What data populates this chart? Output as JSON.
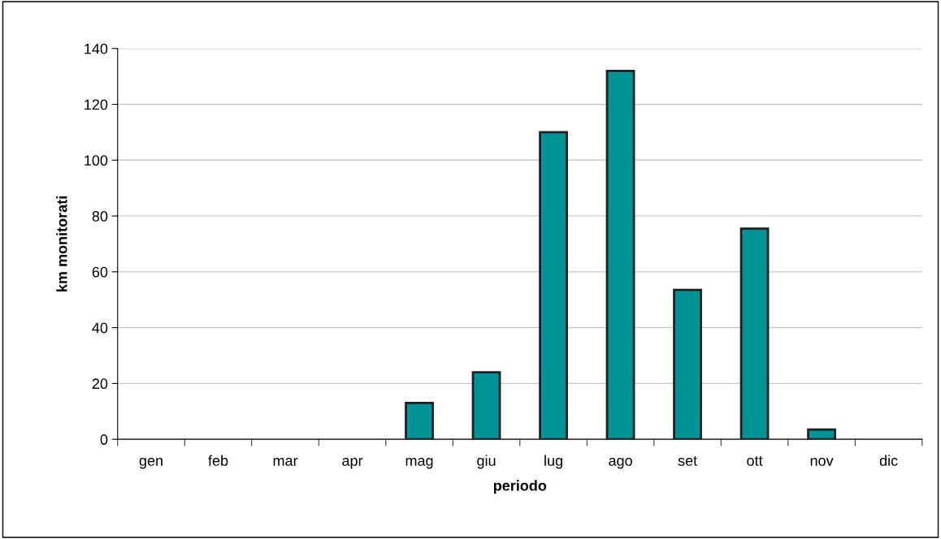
{
  "chart_data": {
    "type": "bar",
    "xlabel": "periodo",
    "ylabel": "km monitorati",
    "categories": [
      "gen",
      "feb",
      "mar",
      "apr",
      "mag",
      "giu",
      "lug",
      "ago",
      "set",
      "ott",
      "nov",
      "dic"
    ],
    "values": [
      0,
      0,
      0,
      0,
      13,
      24,
      110,
      132,
      53.5,
      75.5,
      3.5,
      0
    ],
    "color": "#009499",
    "ylim": [
      0,
      140
    ],
    "yticks": [
      0,
      20,
      40,
      60,
      80,
      100,
      120,
      140
    ],
    "grid": "y",
    "legend": false
  }
}
